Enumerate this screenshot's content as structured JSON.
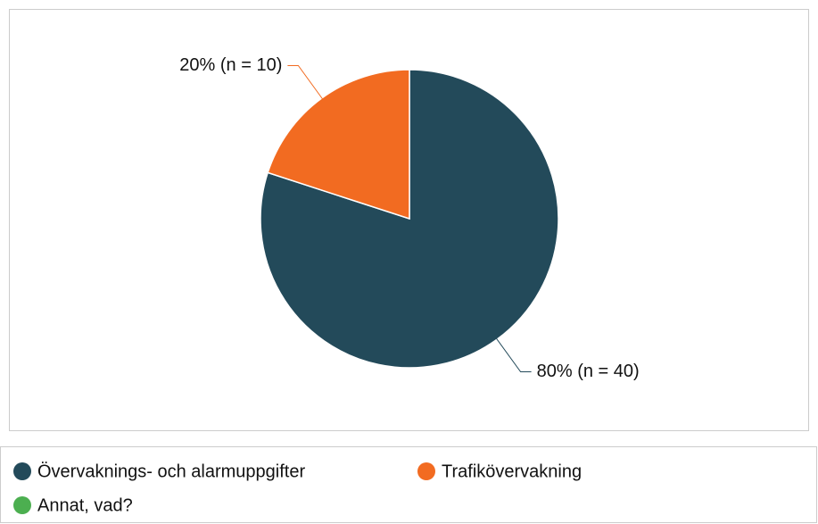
{
  "chart_data": {
    "type": "pie",
    "series": [
      {
        "name": "Övervaknings- och alarmuppgifter",
        "color": "#234a5a"
      },
      {
        "name": "Trafikövervakning",
        "color": "#f26b21"
      },
      {
        "name": "Annat, vad?",
        "color": "#4caf50"
      }
    ],
    "values": [
      80,
      20,
      0
    ],
    "value_labels": [
      "80% (n = 40)",
      "20% (n = 10)",
      null
    ]
  }
}
